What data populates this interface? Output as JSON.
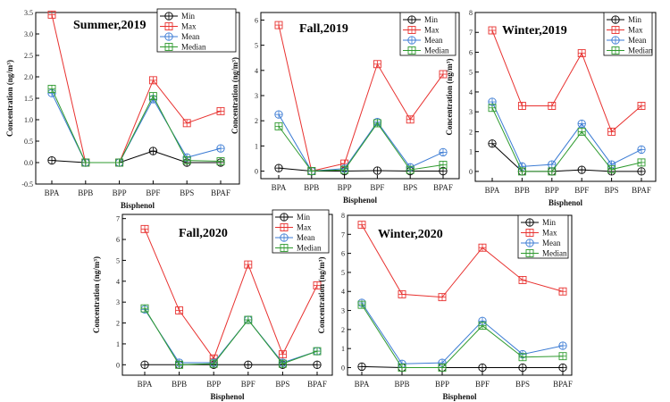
{
  "legend_labels": [
    "Min",
    "Max",
    "Mean",
    "Median"
  ],
  "colors": {
    "Min": "#000000",
    "Max": "#e8312f",
    "Mean": "#3b7bd4",
    "Median": "#2e9a2e"
  },
  "chart_data": [
    {
      "type": "line",
      "title": "Summer,2019",
      "xlabel": "Bisphenol",
      "ylabel": "Concentration (ng/m³)",
      "ylim": [
        -0.5,
        3.5
      ],
      "yticks": [
        "-0.5",
        "0.0",
        "0.5",
        "1.0",
        "1.5",
        "2.0",
        "2.5",
        "3.0",
        "3.5"
      ],
      "categories": [
        "BPA",
        "BPB",
        "BPP",
        "BPF",
        "BPS",
        "BPAF"
      ],
      "legend_position": "top-right",
      "series": [
        {
          "name": "Min",
          "values": [
            0.05,
            0.0,
            0.0,
            0.27,
            0.0,
            0.0
          ]
        },
        {
          "name": "Max",
          "values": [
            3.45,
            0.0,
            0.0,
            1.92,
            0.92,
            1.2
          ]
        },
        {
          "name": "Mean",
          "values": [
            1.62,
            0.0,
            0.0,
            1.48,
            0.12,
            0.33
          ]
        },
        {
          "name": "Median",
          "values": [
            1.72,
            0.0,
            0.0,
            1.55,
            0.05,
            0.03
          ]
        }
      ]
    },
    {
      "type": "line",
      "title": "Fall,2019",
      "xlabel": "Bisphenol",
      "ylabel": "Concentration (ng/m³)",
      "ylim": [
        -0.3,
        6.3
      ],
      "yticks": [
        "0",
        "1",
        "2",
        "3",
        "4",
        "5",
        "6"
      ],
      "categories": [
        "BPA",
        "BPB",
        "BPP",
        "BPF",
        "BPS",
        "BPAF"
      ],
      "legend_position": "top-right",
      "series": [
        {
          "name": "Min",
          "values": [
            0.12,
            0.0,
            0.0,
            0.02,
            0.0,
            0.0
          ]
        },
        {
          "name": "Max",
          "values": [
            5.8,
            0.0,
            0.3,
            4.25,
            2.05,
            3.85
          ]
        },
        {
          "name": "Mean",
          "values": [
            2.25,
            0.0,
            0.1,
            1.95,
            0.15,
            0.75
          ]
        },
        {
          "name": "Median",
          "values": [
            1.78,
            0.0,
            0.05,
            1.9,
            0.05,
            0.25
          ]
        }
      ]
    },
    {
      "type": "line",
      "title": "Winter,2019",
      "xlabel": "Bisphenol",
      "ylabel": "Concentration (ng/m³)",
      "ylim": [
        -0.5,
        8
      ],
      "yticks": [
        "0",
        "1",
        "2",
        "3",
        "4",
        "5",
        "6",
        "7",
        "8"
      ],
      "categories": [
        "BPA",
        "BPB",
        "BPP",
        "BPF",
        "BPS",
        "BPAF"
      ],
      "legend_position": "top-right",
      "series": [
        {
          "name": "Min",
          "values": [
            1.4,
            0.0,
            0.0,
            0.08,
            0.0,
            0.0
          ]
        },
        {
          "name": "Max",
          "values": [
            7.1,
            3.3,
            3.3,
            5.95,
            2.0,
            3.3
          ]
        },
        {
          "name": "Mean",
          "values": [
            3.5,
            0.25,
            0.35,
            2.4,
            0.35,
            1.1
          ]
        },
        {
          "name": "Median",
          "values": [
            3.2,
            0.0,
            0.0,
            2.0,
            0.1,
            0.45
          ]
        }
      ]
    },
    {
      "type": "line",
      "title": "Fall,2020",
      "xlabel": "Bisphenol",
      "ylabel": "Concentration (ng/m³)",
      "ylim": [
        -0.5,
        7.2
      ],
      "yticks": [
        "0",
        "1",
        "2",
        "3",
        "4",
        "5",
        "6",
        "7"
      ],
      "categories": [
        "BPA",
        "BPB",
        "BPP",
        "BPF",
        "BPS",
        "BPAF"
      ],
      "legend_position": "top-right",
      "series": [
        {
          "name": "Min",
          "values": [
            0.0,
            0.0,
            0.0,
            0.0,
            0.0,
            0.0
          ]
        },
        {
          "name": "Max",
          "values": [
            6.5,
            2.6,
            0.3,
            4.8,
            0.5,
            3.8
          ]
        },
        {
          "name": "Mean",
          "values": [
            2.65,
            0.1,
            0.1,
            2.15,
            0.1,
            0.65
          ]
        },
        {
          "name": "Median",
          "values": [
            2.7,
            0.0,
            0.05,
            2.15,
            0.05,
            0.65
          ]
        }
      ]
    },
    {
      "type": "line",
      "title": "Winter,2020",
      "xlabel": "Bisphenol",
      "ylabel": "Concentration (ng/m³)",
      "ylim": [
        -0.4,
        8
      ],
      "yticks": [
        "0",
        "1",
        "2",
        "3",
        "4",
        "5",
        "6",
        "7",
        "8"
      ],
      "categories": [
        "BPA",
        "BPB",
        "BPP",
        "BPF",
        "BPS",
        "BPAF"
      ],
      "legend_position": "top-right",
      "series": [
        {
          "name": "Min",
          "values": [
            0.05,
            0.0,
            0.0,
            0.0,
            0.0,
            0.0
          ]
        },
        {
          "name": "Max",
          "values": [
            7.5,
            3.85,
            3.7,
            6.3,
            4.6,
            4.0
          ]
        },
        {
          "name": "Mean",
          "values": [
            3.4,
            0.2,
            0.25,
            2.45,
            0.7,
            1.15
          ]
        },
        {
          "name": "Median",
          "values": [
            3.3,
            0.0,
            0.0,
            2.2,
            0.55,
            0.6
          ]
        }
      ]
    }
  ]
}
